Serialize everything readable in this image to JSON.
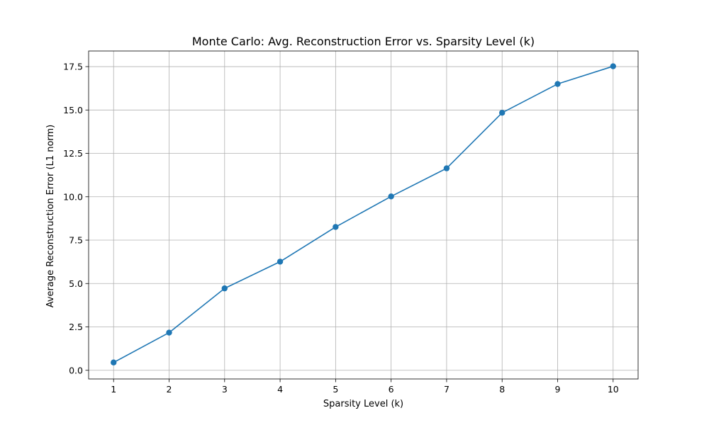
{
  "chart_data": {
    "type": "line",
    "title": "Monte Carlo: Avg. Reconstruction Error vs. Sparsity Level (k)",
    "xlabel": "Sparsity Level (k)",
    "ylabel": "Average Reconstruction Error (L1 norm)",
    "x": [
      1,
      2,
      3,
      4,
      5,
      6,
      7,
      8,
      9,
      10
    ],
    "series": [
      {
        "values": [
          0.45,
          2.17,
          4.72,
          6.26,
          8.26,
          10.02,
          11.64,
          14.84,
          16.5,
          17.52
        ],
        "color": "#1f77b4",
        "marker": "circle"
      }
    ],
    "xlim": [
      0.55,
      10.45
    ],
    "ylim": [
      -0.5,
      18.4
    ],
    "xticks": [
      "1",
      "2",
      "3",
      "4",
      "5",
      "6",
      "7",
      "8",
      "9",
      "10"
    ],
    "yticks": [
      "0.0",
      "2.5",
      "5.0",
      "7.5",
      "10.0",
      "12.5",
      "15.0",
      "17.5"
    ],
    "grid": true,
    "legend": "none"
  }
}
